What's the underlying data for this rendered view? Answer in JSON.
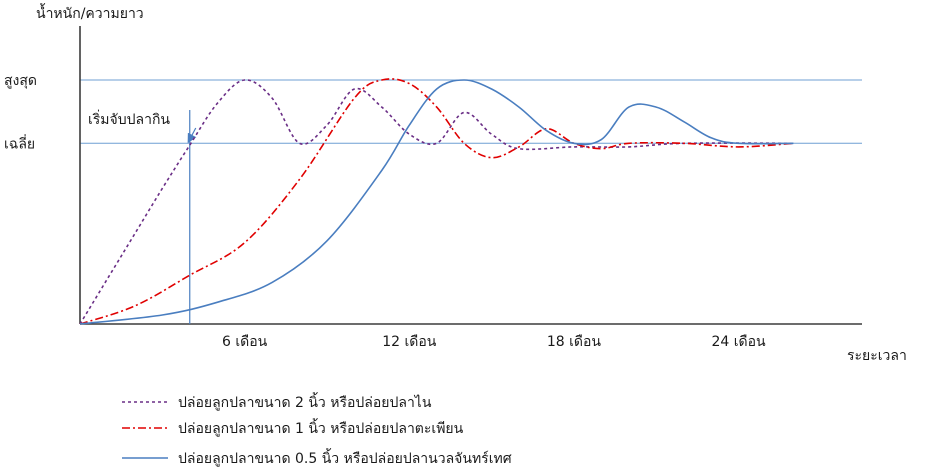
{
  "chart_data": {
    "type": "line",
    "ylabel": "น้ำหนัก/ความยาว",
    "xlabel": "ระยะเวลา",
    "x_unit": "month",
    "xlim": [
      0,
      28.5
    ],
    "ylim": [
      0,
      1.35
    ],
    "y_levels": [
      {
        "label": "สูงสุด",
        "value": 1.35
      },
      {
        "label": "เฉลี่ย",
        "value": 1.0
      }
    ],
    "x_ticks": [
      {
        "label": "6 เดือน",
        "value": 6
      },
      {
        "label": "12 เดือน",
        "value": 12
      },
      {
        "label": "18 เดือน",
        "value": 18
      },
      {
        "label": "24 เดือน",
        "value": 24
      }
    ],
    "annotation": {
      "label": "เริ่มจับปลากิน",
      "x": 4.0
    },
    "grid": {
      "horizontal": true,
      "vertical": false
    },
    "legend_position": "bottom",
    "series": [
      {
        "name": "ปล่อยลูกปลาขนาด 2 นิ้ว หรือปล่อยปลาไน",
        "color": "#6a2e86",
        "dash": "3,3",
        "points": [
          [
            0,
            0
          ],
          [
            1,
            0.25
          ],
          [
            2,
            0.5
          ],
          [
            3,
            0.75
          ],
          [
            4,
            0.99
          ],
          [
            5,
            1.22
          ],
          [
            6,
            1.35
          ],
          [
            7,
            1.25
          ],
          [
            8,
            1.0
          ],
          [
            9,
            1.1
          ],
          [
            10,
            1.3
          ],
          [
            11,
            1.2
          ],
          [
            12,
            1.05
          ],
          [
            13,
            1.0
          ],
          [
            14,
            1.17
          ],
          [
            15,
            1.05
          ],
          [
            16,
            0.97
          ],
          [
            18,
            0.98
          ],
          [
            20,
            0.98
          ],
          [
            22,
            1.0
          ],
          [
            26,
            1.0
          ]
        ]
      },
      {
        "name": "ปล่อยลูกปลาขนาด 1 นิ้ว หรือปล่อยปลาตะเพียน",
        "color": "#e00000",
        "dash": "8,3,2,3",
        "points": [
          [
            0,
            0
          ],
          [
            2,
            0.1
          ],
          [
            4,
            0.27
          ],
          [
            6,
            0.45
          ],
          [
            8,
            0.8
          ],
          [
            10,
            1.25
          ],
          [
            11,
            1.35
          ],
          [
            12,
            1.33
          ],
          [
            13,
            1.2
          ],
          [
            14,
            1.0
          ],
          [
            15,
            0.92
          ],
          [
            16,
            0.98
          ],
          [
            17,
            1.08
          ],
          [
            18,
            1.0
          ],
          [
            19,
            0.97
          ],
          [
            20,
            1.0
          ],
          [
            22,
            1.0
          ],
          [
            24,
            0.98
          ],
          [
            26,
            1.0
          ]
        ]
      },
      {
        "name": "ปล่อยลูกปลาขนาด 0.5 นิ้ว หรือปล่อยปลานวลจันทร์เทศ",
        "color": "#4a7ec0",
        "dash": "",
        "points": [
          [
            0,
            0
          ],
          [
            3,
            0.05
          ],
          [
            5,
            0.12
          ],
          [
            7,
            0.23
          ],
          [
            9,
            0.46
          ],
          [
            11,
            0.85
          ],
          [
            12,
            1.1
          ],
          [
            13,
            1.3
          ],
          [
            14,
            1.35
          ],
          [
            15,
            1.3
          ],
          [
            16,
            1.2
          ],
          [
            17,
            1.07
          ],
          [
            18,
            1.0
          ],
          [
            19,
            1.02
          ],
          [
            20,
            1.2
          ],
          [
            21,
            1.2
          ],
          [
            22,
            1.12
          ],
          [
            23,
            1.03
          ],
          [
            24,
            1.0
          ],
          [
            26,
            1.0
          ]
        ]
      }
    ]
  }
}
